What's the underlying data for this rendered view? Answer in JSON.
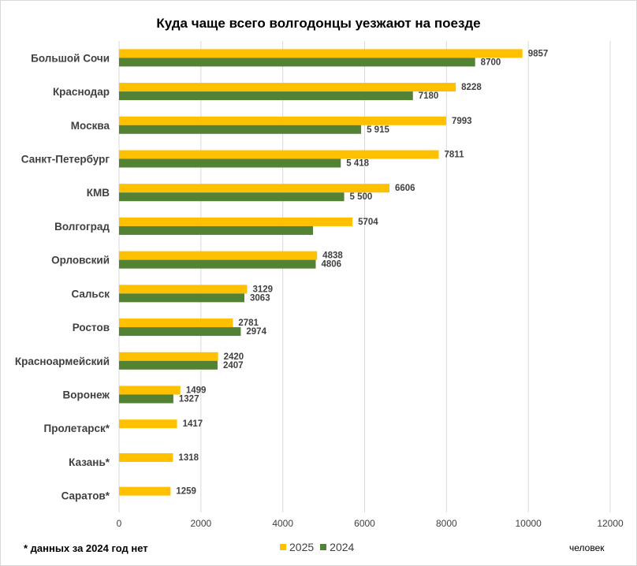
{
  "chart_data": {
    "type": "bar",
    "orientation": "horizontal",
    "title": "Куда чаще всего волгодонцы уезжают на поезде",
    "xlabel": "человек",
    "ylabel": "",
    "xlim": [
      0,
      12000
    ],
    "x_ticks": [
      "0",
      "2000",
      "4000",
      "6000",
      "8000",
      "10000",
      "12000"
    ],
    "x_tick_values": [
      0,
      2000,
      4000,
      6000,
      8000,
      10000,
      12000
    ],
    "grid": "vertical",
    "legend_position": "bottom",
    "categories": [
      "Большой Сочи",
      "Краснодар",
      "Москва",
      "Санкт-Петербург",
      "КМВ",
      "Волгоград",
      "Орловский",
      "Сальск",
      "Ростов",
      "Красноармейский",
      "Воронеж",
      "Пролетарск*",
      "Казань*",
      "Саратов*"
    ],
    "series": [
      {
        "name": "2025",
        "color": "#FFC000",
        "values": [
          9857,
          8228,
          7993,
          7811,
          6606,
          5704,
          4838,
          3129,
          2781,
          2420,
          1499,
          1417,
          1318,
          1259
        ],
        "labels": [
          "9857",
          "8228",
          "7993",
          "7811",
          "6606",
          "5704",
          "4838",
          "3129",
          "2781",
          "2420",
          "1499",
          "1417",
          "1318",
          "1259"
        ]
      },
      {
        "name": "2024",
        "color": "#548235",
        "values": [
          8700,
          7180,
          5915,
          5418,
          5500,
          4740,
          4806,
          3063,
          2974,
          2407,
          1327,
          null,
          null,
          null
        ],
        "labels": [
          "8700",
          "7180",
          "5 915",
          "5 418",
          "5 500",
          "",
          "4806",
          "3063",
          "2974",
          "2407",
          "1327",
          "",
          "",
          ""
        ]
      }
    ],
    "footnote": "* данных за 2024 год нет"
  }
}
